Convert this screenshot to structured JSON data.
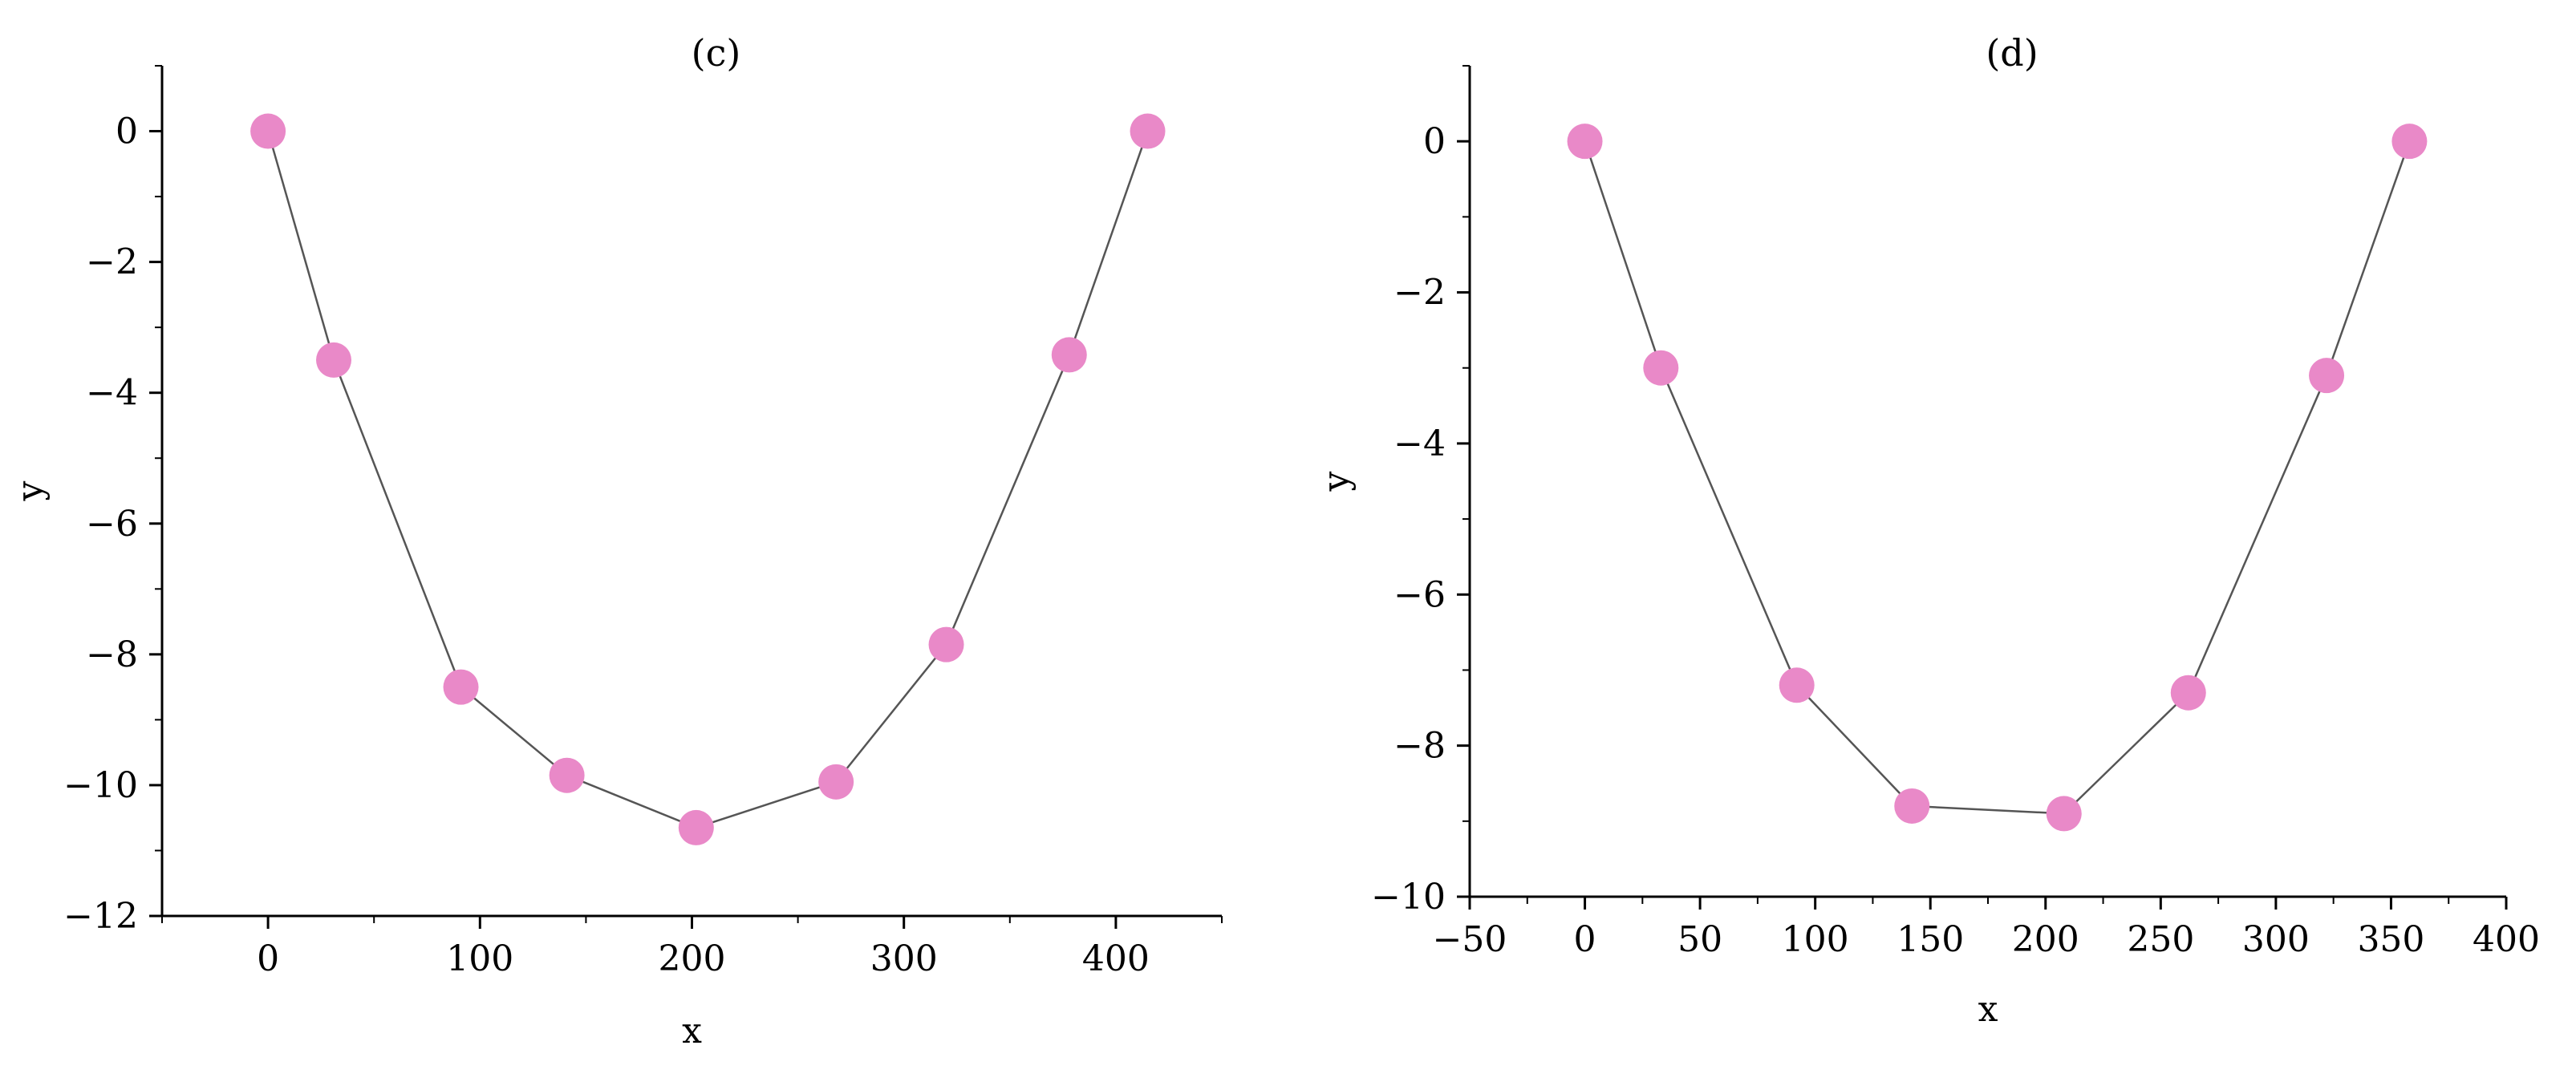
{
  "chart_data": [
    {
      "type": "line",
      "title": "(c)",
      "xlabel": "x",
      "ylabel": "y",
      "xlim": [
        -50,
        450
      ],
      "ylim": [
        -12,
        1
      ],
      "xticks": [
        0,
        100,
        200,
        300,
        400
      ],
      "yticks": [
        0,
        -2,
        -4,
        -6,
        -8,
        -10,
        -12
      ],
      "xtick_labels": [
        "0",
        "100",
        "200",
        "300",
        "400"
      ],
      "ytick_labels": [
        "0",
        "−2",
        "−4",
        "−6",
        "−8",
        "−10",
        "−12"
      ],
      "grid": false,
      "series": [
        {
          "x": [
            0,
            31,
            91,
            141,
            202,
            268,
            320,
            378,
            415
          ],
          "y": [
            0,
            -3.5,
            -8.5,
            -9.85,
            -10.65,
            -9.95,
            -7.85,
            -3.42,
            0
          ],
          "marker_color": "#e989c8",
          "line_color": "#555555"
        }
      ]
    },
    {
      "type": "line",
      "title": "(d)",
      "xlabel": "x",
      "ylabel": "y",
      "xlim": [
        -50,
        400
      ],
      "ylim": [
        -10,
        1
      ],
      "xticks": [
        -50,
        0,
        50,
        100,
        150,
        200,
        250,
        300,
        350,
        400
      ],
      "yticks": [
        0,
        -2,
        -4,
        -6,
        -8,
        -10
      ],
      "xtick_labels": [
        "−50",
        "0",
        "50",
        "100",
        "150",
        "200",
        "250",
        "300",
        "350",
        "400"
      ],
      "ytick_labels": [
        "0",
        "−2",
        "−4",
        "−6",
        "−8",
        "−10"
      ],
      "grid": false,
      "series": [
        {
          "x": [
            0,
            33,
            92,
            142,
            208,
            262,
            322,
            358
          ],
          "y": [
            0,
            -3,
            -7.2,
            -8.8,
            -8.9,
            -7.3,
            -3.1,
            0
          ],
          "marker_color": "#e989c8",
          "line_color": "#555555"
        }
      ]
    }
  ]
}
